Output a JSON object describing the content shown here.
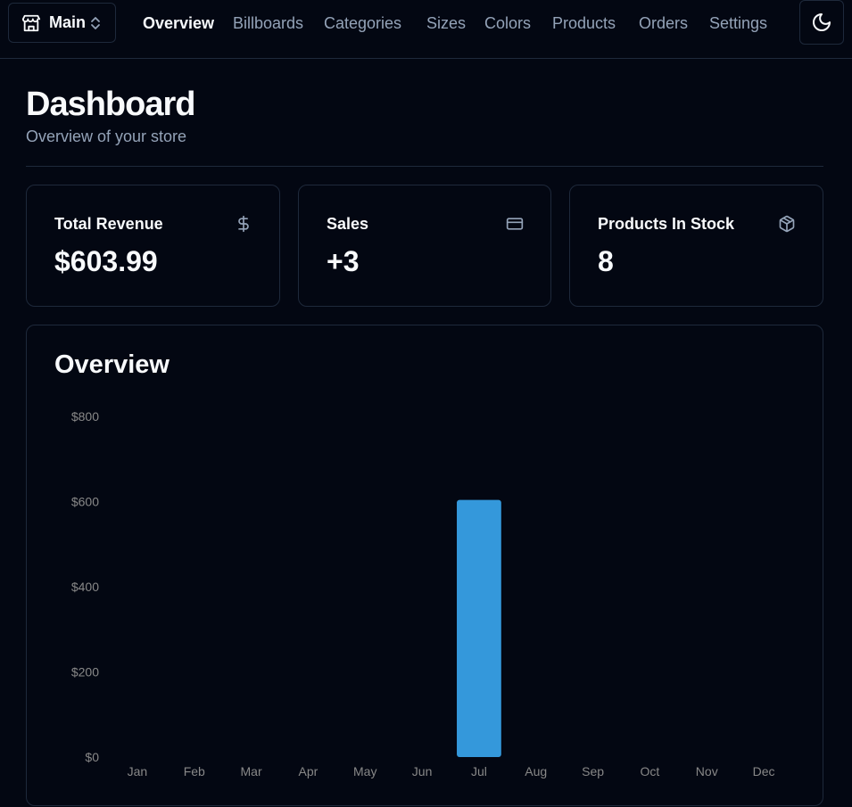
{
  "nav": {
    "store_switcher_label": "Main",
    "links": [
      {
        "label": "Overview",
        "active": true
      },
      {
        "label": "Billboards",
        "active": false
      },
      {
        "label": "Categories",
        "active": false
      },
      {
        "label": "Sizes",
        "active": false
      },
      {
        "label": "Colors",
        "active": false
      },
      {
        "label": "Products",
        "active": false
      },
      {
        "label": "Orders",
        "active": false
      },
      {
        "label": "Settings",
        "active": false
      }
    ],
    "theme_icon": "moon-icon"
  },
  "header": {
    "title": "Dashboard",
    "subtitle": "Overview of your store"
  },
  "stats": [
    {
      "title": "Total Revenue",
      "value": "$603.99",
      "icon": "dollar-icon"
    },
    {
      "title": "Sales",
      "value": "+3",
      "icon": "credit-card-icon"
    },
    {
      "title": "Products In Stock",
      "value": "8",
      "icon": "package-icon"
    }
  ],
  "overview": {
    "title": "Overview"
  },
  "chart_data": {
    "type": "bar",
    "categories": [
      "Jan",
      "Feb",
      "Mar",
      "Apr",
      "May",
      "Jun",
      "Jul",
      "Aug",
      "Sep",
      "Oct",
      "Nov",
      "Dec"
    ],
    "values": [
      0,
      0,
      0,
      0,
      0,
      0,
      603.99,
      0,
      0,
      0,
      0,
      0
    ],
    "yticks": [
      0,
      200,
      400,
      600,
      800
    ],
    "ytick_labels": [
      "$0",
      "$200",
      "$400",
      "$600",
      "$800"
    ],
    "ylim": [
      0,
      800
    ],
    "bar_color": "#3498db",
    "grid": false,
    "title": "",
    "xlabel": "",
    "ylabel": ""
  },
  "colors": {
    "background": "#030712",
    "border": "#1e293b",
    "muted_text": "#94a3b8",
    "text": "#f8fafc",
    "accent": "#3498db"
  }
}
